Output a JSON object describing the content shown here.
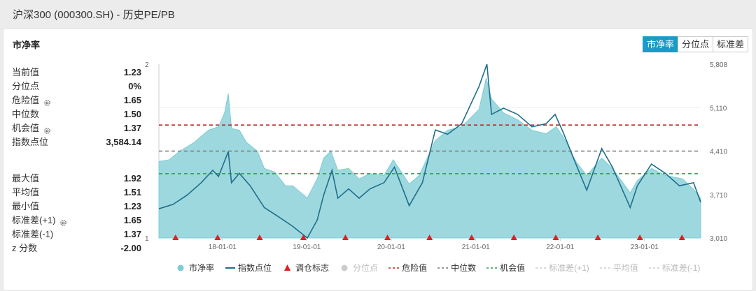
{
  "window": {
    "title": "沪深300 (000300.SH) - 历史PE/PB"
  },
  "panel": {
    "title": "市净率"
  },
  "segments": [
    {
      "label": "市净率",
      "active": true
    },
    {
      "label": "分位点",
      "active": false
    },
    {
      "label": "标准差",
      "active": false
    }
  ],
  "stats_top": [
    {
      "label": "当前值",
      "value": "1.23",
      "gear": false
    },
    {
      "label": "分位点",
      "value": "0%",
      "gear": false
    },
    {
      "label": "危险值",
      "value": "1.65",
      "gear": true
    },
    {
      "label": "中位数",
      "value": "1.50",
      "gear": false
    },
    {
      "label": "机会值",
      "value": "1.37",
      "gear": true
    },
    {
      "label": "指数点位",
      "value": "3,584.14",
      "gear": false
    }
  ],
  "stats_bottom": [
    {
      "label": "最大值",
      "value": "1.92",
      "gear": false
    },
    {
      "label": "平均值",
      "value": "1.51",
      "gear": false
    },
    {
      "label": "最小值",
      "value": "1.23",
      "gear": false
    },
    {
      "label": "标准差(+1)",
      "value": "1.65",
      "gear": true
    },
    {
      "label": "标准差(-1)",
      "value": "1.37",
      "gear": false
    },
    {
      "label": "z 分数",
      "value": "-2.00",
      "gear": false
    }
  ],
  "icons": {
    "gear": "gear-icon"
  },
  "colors": {
    "accent": "#1a9bc4",
    "area": "#9ed8df",
    "index_line": "#1f6f8b",
    "marker": "#e02020",
    "danger": "#c22424",
    "median": "#777777",
    "chance": "#2a9a4a"
  },
  "chart_data": {
    "type": "area",
    "y_left": {
      "ticks": [
        "2",
        "1"
      ],
      "range": [
        1,
        2
      ]
    },
    "y_right": {
      "ticks": [
        "5,808",
        "5,110",
        "4,410",
        "3,710",
        "3,010"
      ],
      "range": [
        3010,
        5808
      ]
    },
    "x_ticks": [
      "18-01-01",
      "19-01-01",
      "20-01-01",
      "21-01-01",
      "22-01-01",
      "23-01-01"
    ],
    "x_range": [
      "2017-04-01",
      "2023-09-01"
    ],
    "reference_lines": {
      "danger": 1.65,
      "median": 1.5,
      "chance": 1.37
    },
    "series": [
      {
        "name": "市净率",
        "points": [
          [
            "2017-04-01",
            1.44
          ],
          [
            "2017-05-15",
            1.45
          ],
          [
            "2017-07-01",
            1.5
          ],
          [
            "2017-09-01",
            1.55
          ],
          [
            "2017-11-01",
            1.62
          ],
          [
            "2017-12-15",
            1.64
          ],
          [
            "2018-01-10",
            1.72
          ],
          [
            "2018-01-26",
            1.83
          ],
          [
            "2018-02-09",
            1.63
          ],
          [
            "2018-03-15",
            1.62
          ],
          [
            "2018-04-15",
            1.55
          ],
          [
            "2018-06-01",
            1.5
          ],
          [
            "2018-07-01",
            1.4
          ],
          [
            "2018-08-15",
            1.38
          ],
          [
            "2018-10-01",
            1.3
          ],
          [
            "2018-11-01",
            1.3
          ],
          [
            "2019-01-03",
            1.23
          ],
          [
            "2019-02-15",
            1.34
          ],
          [
            "2019-03-15",
            1.46
          ],
          [
            "2019-04-15",
            1.5
          ],
          [
            "2019-05-15",
            1.39
          ],
          [
            "2019-07-01",
            1.4
          ],
          [
            "2019-08-15",
            1.34
          ],
          [
            "2019-10-01",
            1.37
          ],
          [
            "2019-12-01",
            1.36
          ],
          [
            "2020-01-10",
            1.45
          ],
          [
            "2020-03-19",
            1.31
          ],
          [
            "2020-05-01",
            1.36
          ],
          [
            "2020-07-10",
            1.56
          ],
          [
            "2020-09-01",
            1.62
          ],
          [
            "2020-11-01",
            1.64
          ],
          [
            "2021-01-15",
            1.74
          ],
          [
            "2021-02-15",
            1.92
          ],
          [
            "2021-03-10",
            1.8
          ],
          [
            "2021-05-01",
            1.72
          ],
          [
            "2021-07-01",
            1.68
          ],
          [
            "2021-09-01",
            1.62
          ],
          [
            "2021-11-01",
            1.6
          ],
          [
            "2021-12-15",
            1.64
          ],
          [
            "2022-01-15",
            1.58
          ],
          [
            "2022-03-10",
            1.44
          ],
          [
            "2022-04-26",
            1.36
          ],
          [
            "2022-06-30",
            1.46
          ],
          [
            "2022-08-15",
            1.4
          ],
          [
            "2022-10-31",
            1.26
          ],
          [
            "2022-12-01",
            1.33
          ],
          [
            "2023-01-31",
            1.4
          ],
          [
            "2023-04-01",
            1.36
          ],
          [
            "2023-06-15",
            1.34
          ],
          [
            "2023-08-01",
            1.28
          ],
          [
            "2023-09-01",
            1.23
          ]
        ]
      },
      {
        "name": "指数点位",
        "points": [
          [
            "2017-04-01",
            3480
          ],
          [
            "2017-06-01",
            3550
          ],
          [
            "2017-08-01",
            3700
          ],
          [
            "2017-10-01",
            3900
          ],
          [
            "2017-11-20",
            4100
          ],
          [
            "2017-12-15",
            4000
          ],
          [
            "2018-01-26",
            4400
          ],
          [
            "2018-02-09",
            3900
          ],
          [
            "2018-03-15",
            4050
          ],
          [
            "2018-05-01",
            3850
          ],
          [
            "2018-07-01",
            3500
          ],
          [
            "2018-09-01",
            3350
          ],
          [
            "2018-10-31",
            3200
          ],
          [
            "2019-01-03",
            3010
          ],
          [
            "2019-02-15",
            3300
          ],
          [
            "2019-03-15",
            3700
          ],
          [
            "2019-04-20",
            4100
          ],
          [
            "2019-05-15",
            3650
          ],
          [
            "2019-07-01",
            3800
          ],
          [
            "2019-08-15",
            3650
          ],
          [
            "2019-10-01",
            3800
          ],
          [
            "2019-12-01",
            3900
          ],
          [
            "2020-01-15",
            4150
          ],
          [
            "2020-03-19",
            3530
          ],
          [
            "2020-05-15",
            3900
          ],
          [
            "2020-07-10",
            4750
          ],
          [
            "2020-09-01",
            4680
          ],
          [
            "2020-11-01",
            4850
          ],
          [
            "2021-01-15",
            5450
          ],
          [
            "2021-02-18",
            5808
          ],
          [
            "2021-03-10",
            5000
          ],
          [
            "2021-05-01",
            5100
          ],
          [
            "2021-07-01",
            5000
          ],
          [
            "2021-09-01",
            4800
          ],
          [
            "2021-11-01",
            4850
          ],
          [
            "2021-12-10",
            5000
          ],
          [
            "2022-01-15",
            4700
          ],
          [
            "2022-03-10",
            4200
          ],
          [
            "2022-04-26",
            3780
          ],
          [
            "2022-06-30",
            4450
          ],
          [
            "2022-08-15",
            4150
          ],
          [
            "2022-10-31",
            3500
          ],
          [
            "2022-12-01",
            3850
          ],
          [
            "2023-01-31",
            4200
          ],
          [
            "2023-04-01",
            4050
          ],
          [
            "2023-06-01",
            3850
          ],
          [
            "2023-08-01",
            3900
          ],
          [
            "2023-09-01",
            3584
          ]
        ]
      },
      {
        "name": "调仓标志",
        "dates": [
          "2017-06-12",
          "2017-12-11",
          "2018-06-11",
          "2018-12-17",
          "2019-06-17",
          "2019-12-16",
          "2020-06-15",
          "2020-12-14",
          "2021-06-15",
          "2021-12-13",
          "2022-06-13",
          "2022-12-12",
          "2023-06-12"
        ]
      }
    ],
    "legend": [
      {
        "label": "市净率",
        "kind": "dot",
        "color": "#7ccdd6"
      },
      {
        "label": "指数点位",
        "kind": "line",
        "color": "#1f6f8b"
      },
      {
        "label": "调仓标志",
        "kind": "triangle",
        "color": "#e02020"
      },
      {
        "label": "分位点",
        "kind": "dot",
        "color": "#cccccc"
      },
      {
        "label": "危险值",
        "kind": "dash",
        "color": "#c22424"
      },
      {
        "label": "中位数",
        "kind": "dash",
        "color": "#777777"
      },
      {
        "label": "机会值",
        "kind": "dash",
        "color": "#2a9a4a"
      },
      {
        "label": "标准差(+1)",
        "kind": "dash",
        "color": "#cccccc"
      },
      {
        "label": "平均值",
        "kind": "dash",
        "color": "#cccccc"
      },
      {
        "label": "标准差(-1)",
        "kind": "dash",
        "color": "#cccccc"
      }
    ],
    "legend_position": "bottom",
    "grid": true
  }
}
